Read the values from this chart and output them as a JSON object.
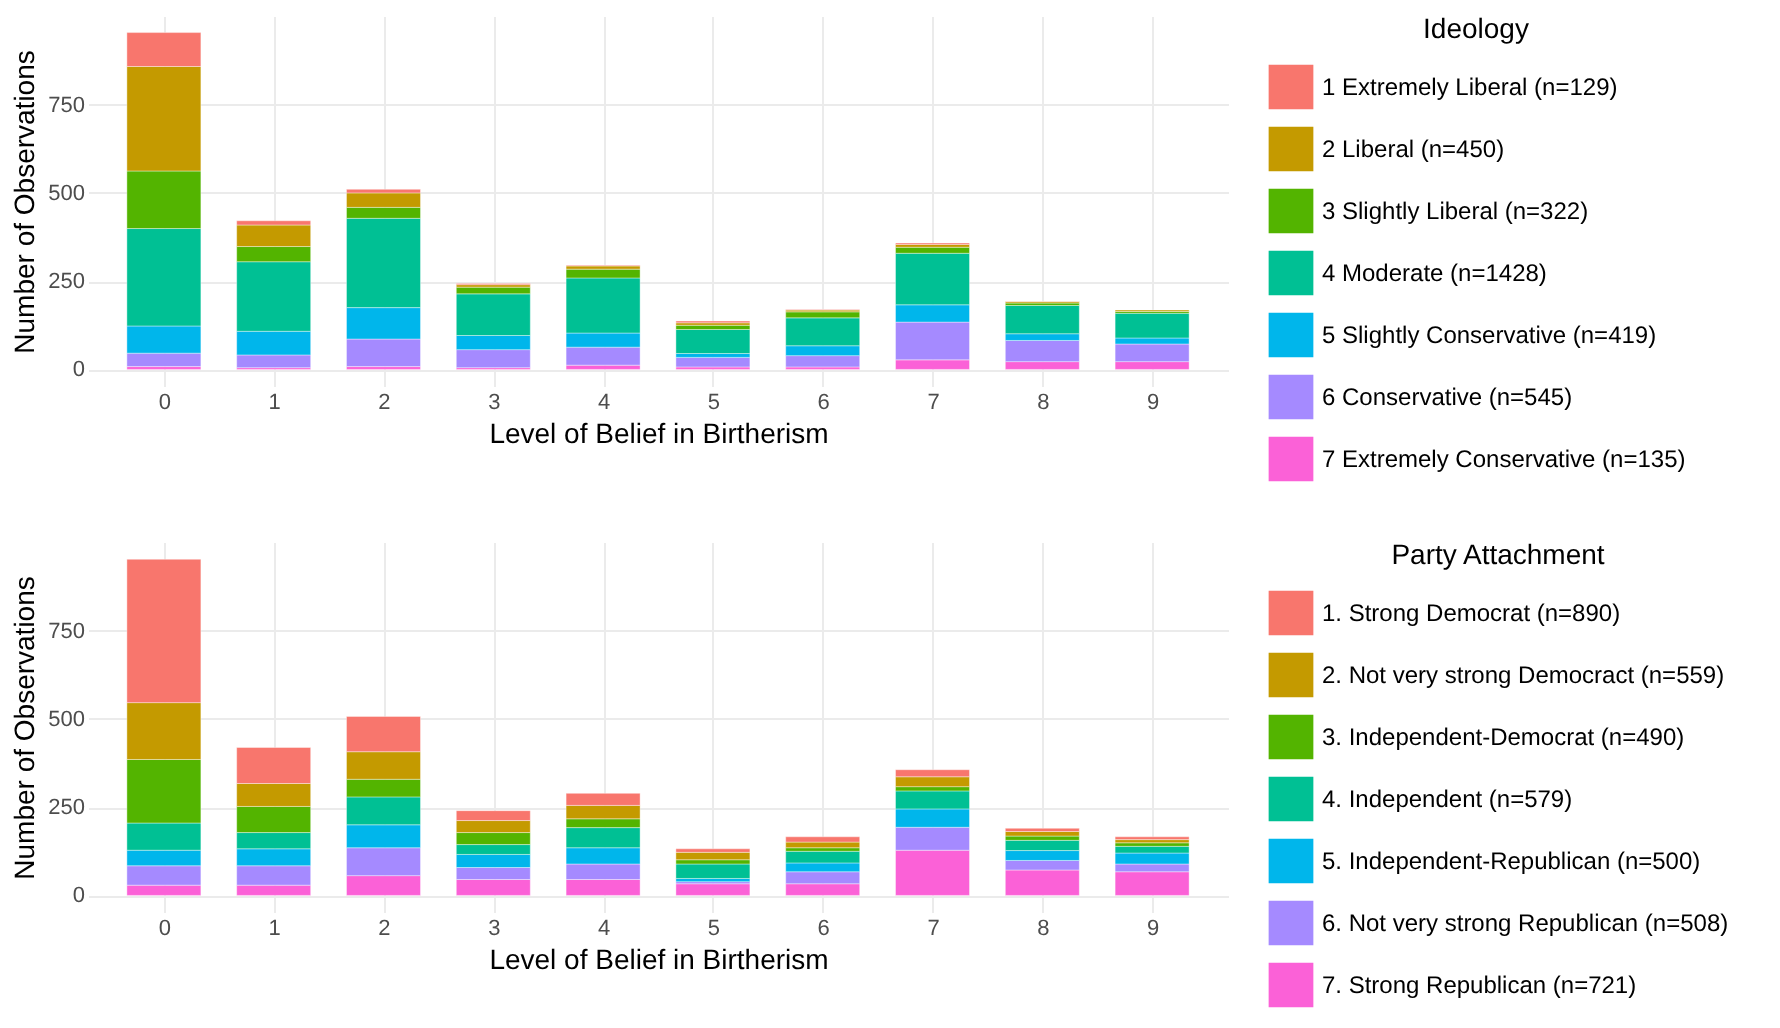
{
  "chart_data": [
    {
      "type": "bar",
      "stacked": true,
      "xlabel": "Level of Belief in Birtherism",
      "ylabel": "Number of Observations",
      "legend_title": "Ideology",
      "legend": "right",
      "grid": true,
      "categories": [
        "0",
        "1",
        "2",
        "3",
        "4",
        "5",
        "6",
        "7",
        "8",
        "9"
      ],
      "ylim": [
        -47,
        1001
      ],
      "yticks": [
        0,
        250,
        500,
        750
      ],
      "series": [
        {
          "name": "7 Extremely Conservative (n=135)",
          "color": "#fb61d7",
          "values": [
            8,
            5,
            8,
            5,
            12,
            7,
            7,
            27,
            22,
            22
          ]
        },
        {
          "name": "6 Conservative (n=545)",
          "color": "#a58aff",
          "values": [
            38,
            36,
            78,
            51,
            51,
            27,
            32,
            107,
            60,
            50
          ]
        },
        {
          "name": "5 Slightly Conservative (n=419)",
          "color": "#00b6eb",
          "values": [
            77,
            67,
            89,
            40,
            40,
            11,
            28,
            49,
            19,
            17
          ]
        },
        {
          "name": "4 Moderate (n=1428)",
          "color": "#00c094",
          "values": [
            276,
            197,
            253,
            118,
            156,
            68,
            79,
            146,
            80,
            70
          ]
        },
        {
          "name": "3 Slightly Liberal (n=322)",
          "color": "#53b400",
          "values": [
            163,
            43,
            31,
            19,
            25,
            12,
            17,
            17,
            7,
            5
          ]
        },
        {
          "name": "2 Liberal (n=450)",
          "color": "#c49a00",
          "values": [
            296,
            61,
            41,
            7,
            9,
            7,
            5,
            8,
            4,
            4
          ]
        },
        {
          "name": "1 Extremely Liberal (n=129)",
          "color": "#f8766d",
          "values": [
            96,
            12,
            10,
            3,
            2,
            5,
            2,
            4,
            1,
            null
          ]
        }
      ]
    },
    {
      "type": "bar",
      "stacked": true,
      "xlabel": "Level of Belief in Birtherism",
      "ylabel": "Number of Observations",
      "legend_title": "Party Attachment",
      "legend": "right",
      "grid": true,
      "categories": [
        "0",
        "1",
        "2",
        "3",
        "4",
        "5",
        "6",
        "7",
        "8",
        "9"
      ],
      "ylim": [
        -47,
        1001
      ],
      "yticks": [
        0,
        250,
        500,
        750
      ],
      "series": [
        {
          "name": "7. Strong Republican (n=721)",
          "color": "#fb61d7",
          "values": [
            29,
            29,
            56,
            45,
            45,
            33,
            33,
            128,
            72,
            67
          ]
        },
        {
          "name": "6. Not very strong Republican (n=508)",
          "color": "#a58aff",
          "values": [
            55,
            55,
            79,
            34,
            44,
            6,
            34,
            65,
            27,
            22
          ]
        },
        {
          "name": "5. Independent-Republican (n=500)",
          "color": "#00b6eb",
          "values": [
            44,
            48,
            65,
            37,
            46,
            9,
            25,
            52,
            28,
            31
          ]
        },
        {
          "name": "4. Independent (n=579)",
          "color": "#00c094",
          "values": [
            77,
            46,
            79,
            28,
            57,
            41,
            33,
            51,
            29,
            19
          ]
        },
        {
          "name": "3. Independent-Democrat (n=490)",
          "color": "#53b400",
          "values": [
            180,
            74,
            50,
            34,
            25,
            12,
            10,
            12,
            12,
            10
          ]
        },
        {
          "name": "2. Not very strong Democract (n=559)",
          "color": "#c49a00",
          "values": [
            161,
            65,
            78,
            34,
            38,
            21,
            16,
            28,
            13,
            9
          ]
        },
        {
          "name": "1. Strong Democrat (n=890)",
          "color": "#f8766d",
          "values": [
            406,
            102,
            100,
            28,
            34,
            10,
            15,
            20,
            9,
            8
          ]
        }
      ]
    }
  ]
}
